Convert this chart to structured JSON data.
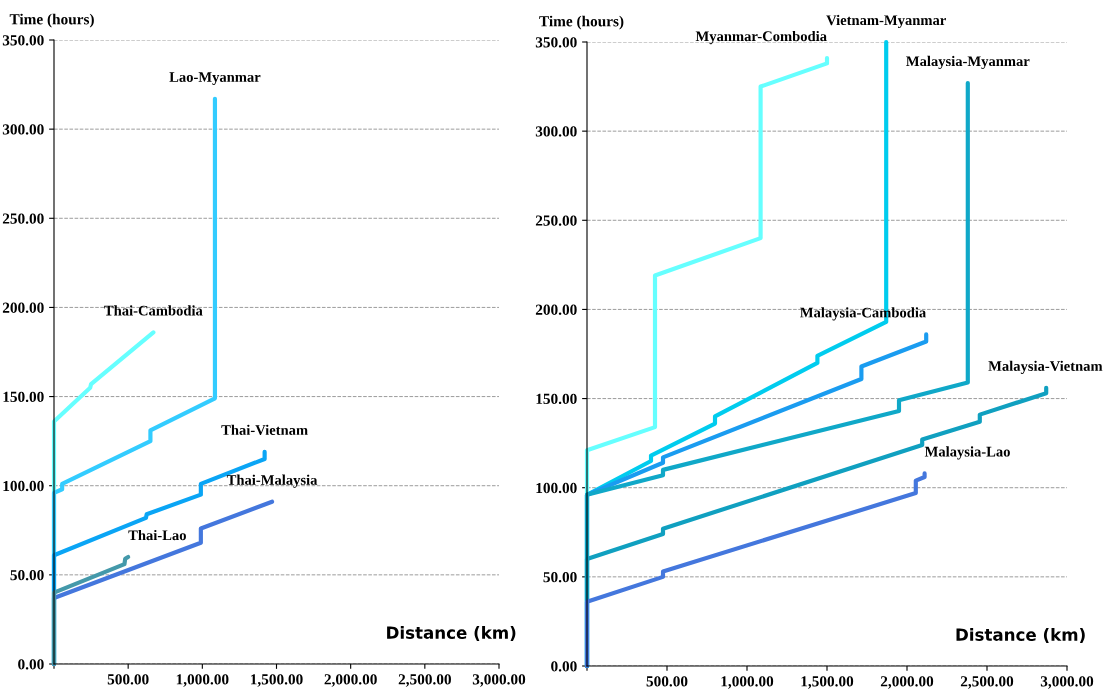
{
  "chart_data": [
    {
      "type": "line",
      "ylabel": "Time (hours)",
      "xlabel": "Distance (km)",
      "xlim": [
        0,
        3000
      ],
      "ylim": [
        0,
        350
      ],
      "xticks": [
        {
          "value": 0,
          "label": null
        },
        {
          "value": 500,
          "label": "500.00"
        },
        {
          "value": 1000,
          "label": "1,000.00"
        },
        {
          "value": 1500,
          "label": "1,500.00"
        },
        {
          "value": 2000,
          "label": "2,000.00"
        },
        {
          "value": 2500,
          "label": "2,500.00"
        },
        {
          "value": 3000,
          "label": "3,000.00"
        }
      ],
      "yticks": [
        {
          "value": 0,
          "label": "0.00"
        },
        {
          "value": 50,
          "label": "50.00"
        },
        {
          "value": 100,
          "label": "100.00"
        },
        {
          "value": 150,
          "label": "150.00"
        },
        {
          "value": 200,
          "label": "200.00"
        },
        {
          "value": 250,
          "label": "250.00"
        },
        {
          "value": 300,
          "label": "300.00"
        },
        {
          "value": 350,
          "label": "350.00"
        }
      ],
      "grid": "y",
      "line_style": "solid",
      "marker": "none",
      "series": [
        {
          "name": "Thai-Cambodia",
          "color": "#66ffff",
          "x": [
            0,
            0,
            244,
            250,
            670
          ],
          "values": [
            0,
            136,
            155,
            157,
            186
          ]
        },
        {
          "name": "Lao-Myanmar",
          "color": "#33ccff",
          "x": [
            0,
            0,
            55,
            55,
            650,
            650,
            1085,
            1085
          ],
          "values": [
            0,
            96,
            98,
            101,
            125,
            131,
            149,
            317
          ]
        },
        {
          "name": "Thai-Vietnam",
          "color": "#0aa5f5",
          "x": [
            0,
            0,
            620,
            625,
            990,
            990,
            1420,
            1420
          ],
          "values": [
            0,
            61,
            82,
            84,
            95,
            101,
            115,
            119
          ]
        },
        {
          "name": "Thai-Malaysia",
          "color": "#4477dd",
          "x": [
            0,
            0,
            990,
            990,
            1470
          ],
          "values": [
            0,
            37,
            68,
            76,
            91
          ]
        },
        {
          "name": "Thai-Lao",
          "color": "#4499aa",
          "x": [
            0,
            0,
            475,
            480,
            500
          ],
          "values": [
            0,
            40,
            56,
            59,
            60
          ]
        }
      ]
    },
    {
      "type": "line",
      "ylabel": "Time (hours)",
      "xlabel": "Distance (km)",
      "xlim": [
        0,
        3000
      ],
      "ylim": [
        0,
        350
      ],
      "xticks": [
        {
          "value": 0,
          "label": null
        },
        {
          "value": 500,
          "label": "500.00"
        },
        {
          "value": 1000,
          "label": "1,000.00"
        },
        {
          "value": 1500,
          "label": "1,500.00"
        },
        {
          "value": 2000,
          "label": "2,000.00"
        },
        {
          "value": 2500,
          "label": "2,500.00"
        },
        {
          "value": 3000,
          "label": "3,000.00"
        }
      ],
      "yticks": [
        {
          "value": 0,
          "label": "0.00"
        },
        {
          "value": 50,
          "label": "50.00"
        },
        {
          "value": 100,
          "label": "100.00"
        },
        {
          "value": 150,
          "label": "150.00"
        },
        {
          "value": 200,
          "label": "200.00"
        },
        {
          "value": 250,
          "label": "250.00"
        },
        {
          "value": 300,
          "label": "300.00"
        },
        {
          "value": 350,
          "label": "350.00"
        }
      ],
      "grid": "y",
      "line_style": "solid",
      "marker": "none",
      "series": [
        {
          "name": "Myanmar-Combodia",
          "color": "#66ffff",
          "x": [
            0,
            0,
            425,
            425,
            1085,
            1085,
            1500,
            1500
          ],
          "values": [
            0,
            121,
            134,
            219,
            240,
            325,
            338,
            341
          ]
        },
        {
          "name": "Vietnam-Myanmar",
          "color": "#00ccee",
          "x": [
            0,
            0,
            400,
            400,
            800,
            800,
            1440,
            1440,
            1870,
            1870
          ],
          "values": [
            0,
            96,
            115,
            118,
            136,
            140,
            170,
            174,
            193,
            350
          ]
        },
        {
          "name": "Malaysia-Cambodia",
          "color": "#1a9cf0",
          "x": [
            0,
            0,
            475,
            475,
            1715,
            1715,
            2120,
            2120
          ],
          "values": [
            0,
            96,
            114,
            117,
            161,
            168,
            182,
            186
          ]
        },
        {
          "name": "Malaysia-Myanmar",
          "color": "#10a8c8",
          "x": [
            0,
            0,
            475,
            475,
            1950,
            1950,
            2380,
            2380
          ],
          "values": [
            0,
            96,
            107,
            110,
            143,
            149,
            159,
            327
          ]
        },
        {
          "name": "Malaysia-Vietnam",
          "color": "#10a0c0",
          "x": [
            0,
            0,
            475,
            475,
            2095,
            2095,
            2455,
            2455,
            2870,
            2870
          ],
          "values": [
            0,
            60,
            74,
            77,
            124,
            127,
            137,
            141,
            153,
            156
          ]
        },
        {
          "name": "Malaysia-Lao",
          "color": "#4477dd",
          "x": [
            0,
            0,
            475,
            475,
            2055,
            2055,
            2110,
            2110
          ],
          "values": [
            0,
            36,
            50,
            53,
            97,
            104,
            106,
            108
          ]
        }
      ]
    }
  ]
}
